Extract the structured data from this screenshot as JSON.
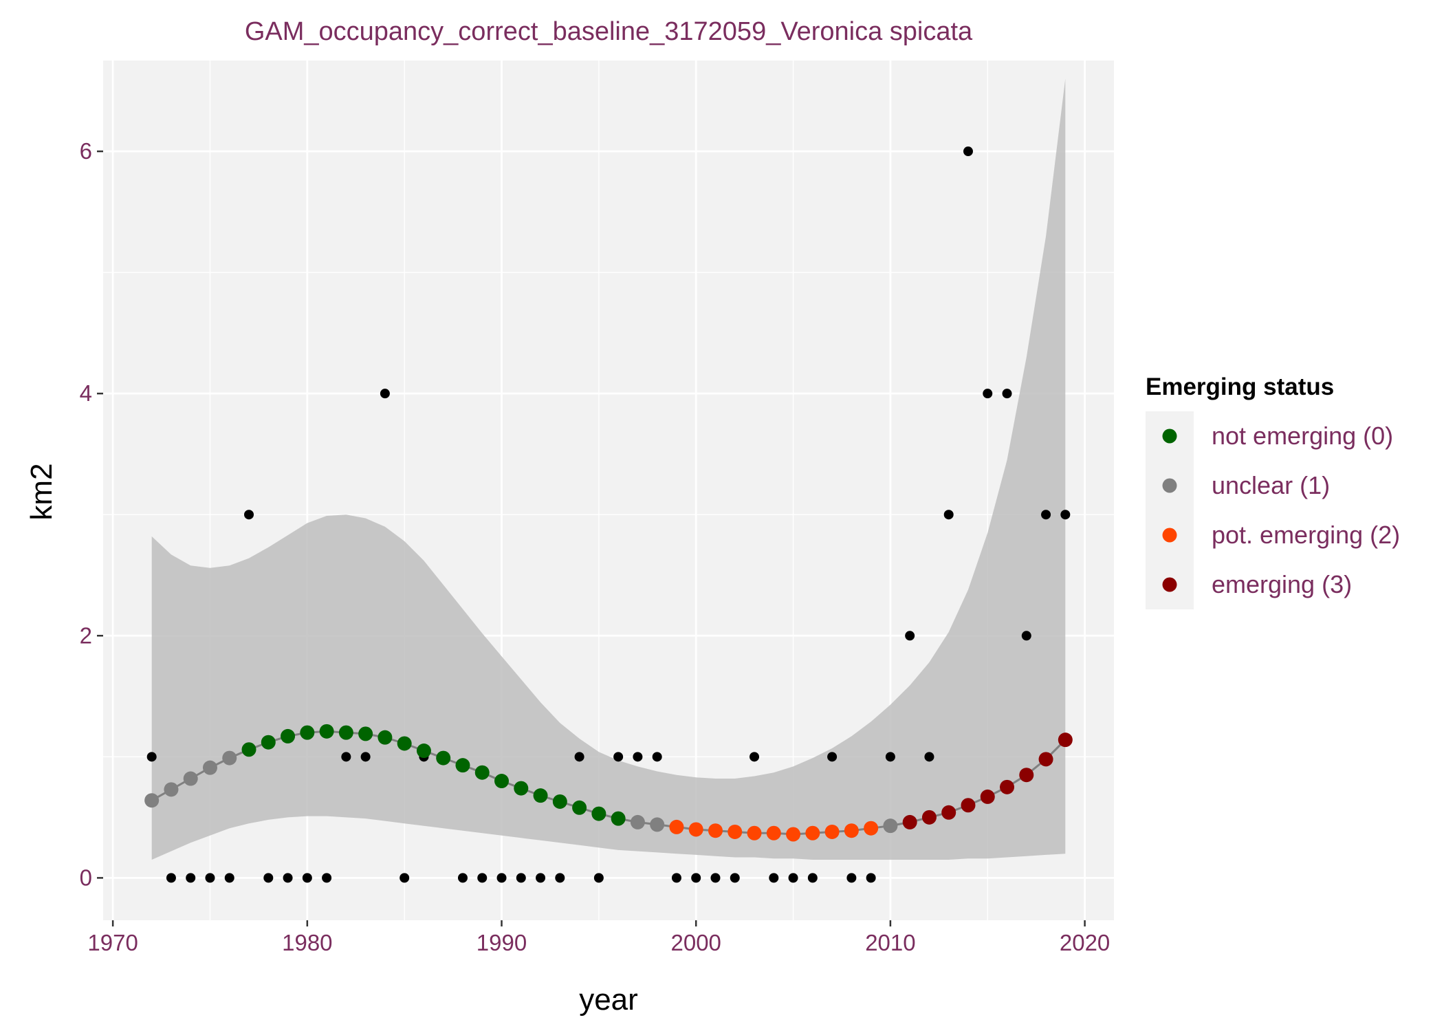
{
  "chart_data": {
    "type": "scatter",
    "title": "GAM_occupancy_correct_baseline_3172059_Veronica spicata",
    "xlabel": "year",
    "ylabel": "km2",
    "xlim": [
      1969.5,
      2021.5
    ],
    "ylim": [
      -0.35,
      6.75
    ],
    "x_ticks": [
      1970,
      1980,
      1990,
      2000,
      2010,
      2020
    ],
    "y_ticks": [
      0,
      2,
      4,
      6
    ],
    "grid": true,
    "legend": {
      "title": "Emerging status",
      "placement": "right",
      "entries": [
        {
          "label": "not emerging (0)",
          "color": "#006400"
        },
        {
          "label": "unclear (1)",
          "color": "#808080"
        },
        {
          "label": "pot. emerging (2)",
          "color": "#ff4500"
        },
        {
          "label": "emerging (3)",
          "color": "#8b0000"
        }
      ]
    },
    "colors": {
      "panel": "#f2f2f2",
      "grid": "#ffffff",
      "ribbon": "#bebebe",
      "fit_line": "#808080",
      "observed": "#000000",
      "status": [
        "#006400",
        "#808080",
        "#ff4500",
        "#8b0000"
      ]
    },
    "observed": {
      "x": [
        1972,
        1973,
        1974,
        1975,
        1976,
        1977,
        1978,
        1979,
        1980,
        1981,
        1982,
        1983,
        1984,
        1985,
        1986,
        1987,
        1988,
        1989,
        1990,
        1991,
        1992,
        1993,
        1994,
        1995,
        1996,
        1997,
        1998,
        1999,
        2000,
        2001,
        2002,
        2003,
        2004,
        2005,
        2006,
        2007,
        2008,
        2009,
        2010,
        2011,
        2012,
        2013,
        2014,
        2015,
        2016,
        2017,
        2018,
        2019
      ],
      "y": [
        1,
        0,
        0,
        0,
        0,
        3,
        0,
        0,
        0,
        0,
        1,
        1,
        4,
        0,
        1,
        1,
        0,
        0,
        0,
        0,
        0,
        0,
        1,
        0,
        1,
        1,
        1,
        0,
        0,
        0,
        0,
        1,
        0,
        0,
        0,
        1,
        0,
        0,
        1,
        2,
        1,
        3,
        6,
        4,
        4,
        2,
        3,
        3
      ]
    },
    "fitted": {
      "x": [
        1972,
        1973,
        1974,
        1975,
        1976,
        1977,
        1978,
        1979,
        1980,
        1981,
        1982,
        1983,
        1984,
        1985,
        1986,
        1987,
        1988,
        1989,
        1990,
        1991,
        1992,
        1993,
        1994,
        1995,
        1996,
        1997,
        1998,
        1999,
        2000,
        2001,
        2002,
        2003,
        2004,
        2005,
        2006,
        2007,
        2008,
        2009,
        2010,
        2011,
        2012,
        2013,
        2014,
        2015,
        2016,
        2017,
        2018,
        2019
      ],
      "y": [
        0.64,
        0.73,
        0.82,
        0.91,
        0.99,
        1.06,
        1.12,
        1.17,
        1.2,
        1.21,
        1.2,
        1.19,
        1.16,
        1.11,
        1.05,
        0.99,
        0.93,
        0.87,
        0.8,
        0.74,
        0.68,
        0.63,
        0.58,
        0.53,
        0.49,
        0.46,
        0.44,
        0.42,
        0.4,
        0.39,
        0.38,
        0.37,
        0.37,
        0.36,
        0.37,
        0.38,
        0.39,
        0.41,
        0.43,
        0.46,
        0.5,
        0.54,
        0.6,
        0.67,
        0.75,
        0.85,
        0.98,
        1.14
      ],
      "status": [
        1,
        1,
        1,
        1,
        1,
        0,
        0,
        0,
        0,
        0,
        0,
        0,
        0,
        0,
        0,
        0,
        0,
        0,
        0,
        0,
        0,
        0,
        0,
        0,
        0,
        1,
        1,
        2,
        2,
        2,
        2,
        2,
        2,
        2,
        2,
        2,
        2,
        2,
        1,
        3,
        3,
        3,
        3,
        3,
        3,
        3,
        3,
        3
      ],
      "lower": [
        0.15,
        0.22,
        0.29,
        0.35,
        0.41,
        0.45,
        0.48,
        0.5,
        0.51,
        0.51,
        0.5,
        0.49,
        0.47,
        0.45,
        0.43,
        0.41,
        0.39,
        0.37,
        0.35,
        0.33,
        0.31,
        0.29,
        0.27,
        0.25,
        0.23,
        0.22,
        0.21,
        0.2,
        0.19,
        0.18,
        0.17,
        0.17,
        0.16,
        0.16,
        0.15,
        0.15,
        0.15,
        0.15,
        0.15,
        0.15,
        0.15,
        0.15,
        0.16,
        0.16,
        0.17,
        0.18,
        0.19,
        0.2
      ],
      "upper": [
        2.82,
        2.67,
        2.58,
        2.56,
        2.58,
        2.64,
        2.73,
        2.83,
        2.93,
        2.99,
        3.0,
        2.97,
        2.9,
        2.78,
        2.62,
        2.42,
        2.22,
        2.02,
        1.83,
        1.64,
        1.45,
        1.28,
        1.15,
        1.04,
        0.97,
        0.92,
        0.88,
        0.85,
        0.83,
        0.82,
        0.82,
        0.84,
        0.87,
        0.92,
        0.99,
        1.07,
        1.17,
        1.29,
        1.43,
        1.59,
        1.78,
        2.03,
        2.38,
        2.85,
        3.45,
        4.3,
        5.3,
        6.6
      ]
    }
  }
}
